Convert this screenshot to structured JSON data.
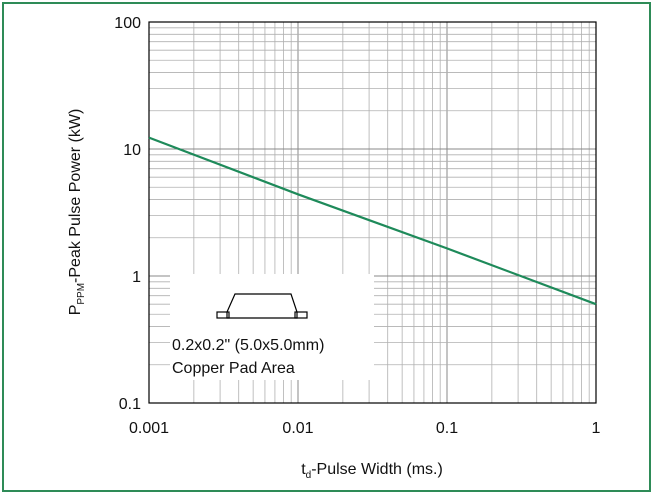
{
  "chart_data": {
    "type": "line",
    "xlabel": {
      "main": "t",
      "sub": "d",
      "rest": "-Pulse Width (ms.)"
    },
    "ylabel": {
      "main": "P",
      "sub": "PPM",
      "rest": "-Peak Pulse Power (kW)"
    },
    "x_scale": "log",
    "y_scale": "log",
    "xlim": [
      0.001,
      1
    ],
    "ylim": [
      0.1,
      100
    ],
    "x_ticks": [
      "0.001",
      "0.01",
      "0.1",
      "1"
    ],
    "y_ticks": [
      "0.1",
      "1",
      "10",
      "100"
    ],
    "grid": true,
    "series": [
      {
        "x": [
          0.001,
          0.01,
          0.1,
          1
        ],
        "y": [
          12.3,
          4.4,
          1.65,
          0.6
        ]
      }
    ],
    "annotation": {
      "line1": "0.2x0.2\" (5.0x5.0mm)",
      "line2": "Copper Pad Area"
    }
  },
  "colors": {
    "line": "#1e8a5a",
    "frame": "#2e8b57",
    "grid": "#b0b0b0",
    "axis": "#000000"
  }
}
